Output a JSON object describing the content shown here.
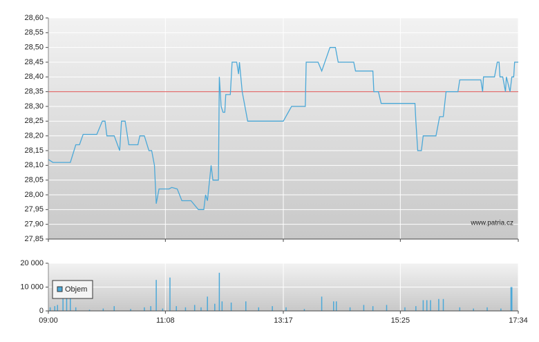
{
  "chart_data": [
    {
      "type": "line",
      "watermark": "www.patria.cz",
      "xlim": [
        "09:00",
        "17:34"
      ],
      "ylim": [
        27.85,
        28.6
      ],
      "yticks": [
        {
          "value": 27.85,
          "label": "27,85"
        },
        {
          "value": 27.9,
          "label": "27,90"
        },
        {
          "value": 27.95,
          "label": "27,95"
        },
        {
          "value": 28.0,
          "label": "28,00"
        },
        {
          "value": 28.05,
          "label": "28,05"
        },
        {
          "value": 28.1,
          "label": "28,10"
        },
        {
          "value": 28.15,
          "label": "28,15"
        },
        {
          "value": 28.2,
          "label": "28,20"
        },
        {
          "value": 28.25,
          "label": "28,25"
        },
        {
          "value": 28.3,
          "label": "28,30"
        },
        {
          "value": 28.35,
          "label": "28,35"
        },
        {
          "value": 28.4,
          "label": "28,40"
        },
        {
          "value": 28.45,
          "label": "28,45"
        },
        {
          "value": 28.5,
          "label": "28,50"
        },
        {
          "value": 28.55,
          "label": "28,55"
        },
        {
          "value": 28.6,
          "label": "28,60"
        }
      ],
      "grid": true,
      "reference_line": {
        "value": 28.35,
        "color": "#e06060"
      },
      "color": "#4aa8d8",
      "x": [
        "09:00",
        "09:05",
        "09:24",
        "09:30",
        "09:34",
        "09:38",
        "09:53",
        "09:59",
        "10:02",
        "10:04",
        "10:12",
        "10:18",
        "10:20",
        "10:24",
        "10:28",
        "10:38",
        "10:40",
        "10:45",
        "10:50",
        "10:53",
        "10:56",
        "10:58",
        "11:01",
        "11:12",
        "11:15",
        "11:21",
        "11:26",
        "11:36",
        "11:44",
        "11:50",
        "11:52",
        "11:54",
        "11:58",
        "12:00",
        "12:06",
        "12:07",
        "12:09",
        "12:11",
        "12:13",
        "12:14",
        "12:19",
        "12:21",
        "12:26",
        "12:28",
        "12:29",
        "12:32",
        "12:38",
        "13:17",
        "13:26",
        "13:41",
        "13:42",
        "13:55",
        "13:59",
        "14:08",
        "14:14",
        "14:17",
        "14:34",
        "14:36",
        "14:55",
        "14:56",
        "15:01",
        "15:04",
        "15:41",
        "15:42",
        "15:44",
        "15:48",
        "15:50",
        "16:04",
        "16:08",
        "16:12",
        "16:15",
        "16:28",
        "16:30",
        "16:53",
        "16:55",
        "16:56",
        "17:08",
        "17:11",
        "17:13",
        "17:14",
        "17:17",
        "17:20",
        "17:21",
        "17:25",
        "17:27",
        "17:29",
        "17:30",
        "17:34"
      ],
      "values": [
        28.12,
        28.11,
        28.11,
        28.17,
        28.17,
        28.205,
        28.205,
        28.25,
        28.25,
        28.2,
        28.2,
        28.15,
        28.25,
        28.25,
        28.17,
        28.17,
        28.2,
        28.2,
        28.15,
        28.15,
        28.1,
        27.97,
        28.02,
        28.02,
        28.025,
        28.02,
        27.98,
        27.98,
        27.95,
        27.95,
        28.0,
        27.98,
        28.1,
        28.05,
        28.05,
        28.4,
        28.3,
        28.28,
        28.28,
        28.34,
        28.34,
        28.45,
        28.45,
        28.41,
        28.45,
        28.35,
        28.25,
        28.25,
        28.3,
        28.3,
        28.45,
        28.45,
        28.42,
        28.5,
        28.5,
        28.45,
        28.45,
        28.42,
        28.42,
        28.35,
        28.35,
        28.31,
        28.31,
        28.25,
        28.15,
        28.15,
        28.2,
        28.2,
        28.265,
        28.265,
        28.35,
        28.35,
        28.39,
        28.39,
        28.35,
        28.4,
        28.4,
        28.45,
        28.45,
        28.4,
        28.4,
        28.35,
        28.4,
        28.35,
        28.4,
        28.4,
        28.45,
        28.45
      ]
    },
    {
      "type": "bar",
      "xlim": [
        "09:00",
        "17:34"
      ],
      "xticks": [
        "09:00",
        "11:08",
        "13:17",
        "15:25",
        "17:34"
      ],
      "ylim": [
        0,
        20000
      ],
      "yticks": [
        0,
        {
          "value": 10000,
          "label": "10 000"
        },
        {
          "value": 20000,
          "label": "20 000"
        }
      ],
      "grid": true,
      "legend": "upper-left",
      "x": [
        "09:02",
        "09:07",
        "09:10",
        "09:16",
        "09:20",
        "09:24",
        "09:30",
        "09:45",
        "10:00",
        "10:12",
        "10:30",
        "10:45",
        "10:52",
        "10:58",
        "11:05",
        "11:13",
        "11:20",
        "11:30",
        "11:40",
        "11:47",
        "11:54",
        "12:02",
        "12:07",
        "12:10",
        "12:20",
        "12:36",
        "12:50",
        "13:05",
        "13:20",
        "13:40",
        "13:59",
        "14:12",
        "14:15",
        "14:30",
        "14:45",
        "14:55",
        "15:10",
        "15:30",
        "15:42",
        "15:50",
        "15:54",
        "15:58",
        "16:07",
        "16:12",
        "16:30",
        "16:45",
        "17:00",
        "17:15",
        "17:26",
        "17:27"
      ],
      "series": [
        {
          "name": "Objem",
          "color": "#4aa8d8",
          "values": [
            1500,
            2000,
            2500,
            6000,
            6500,
            6000,
            1500,
            500,
            1000,
            2000,
            800,
            1500,
            2000,
            13000,
            1000,
            14000,
            2000,
            1500,
            2500,
            1500,
            6000,
            3000,
            16000,
            4000,
            3500,
            4000,
            1500,
            2000,
            1500,
            800,
            6000,
            4000,
            4000,
            1500,
            2500,
            2000,
            2500,
            1500,
            2000,
            4500,
            4500,
            4500,
            5000,
            5000,
            1500,
            1000,
            1500,
            1000,
            10000,
            10000
          ]
        }
      ]
    }
  ]
}
